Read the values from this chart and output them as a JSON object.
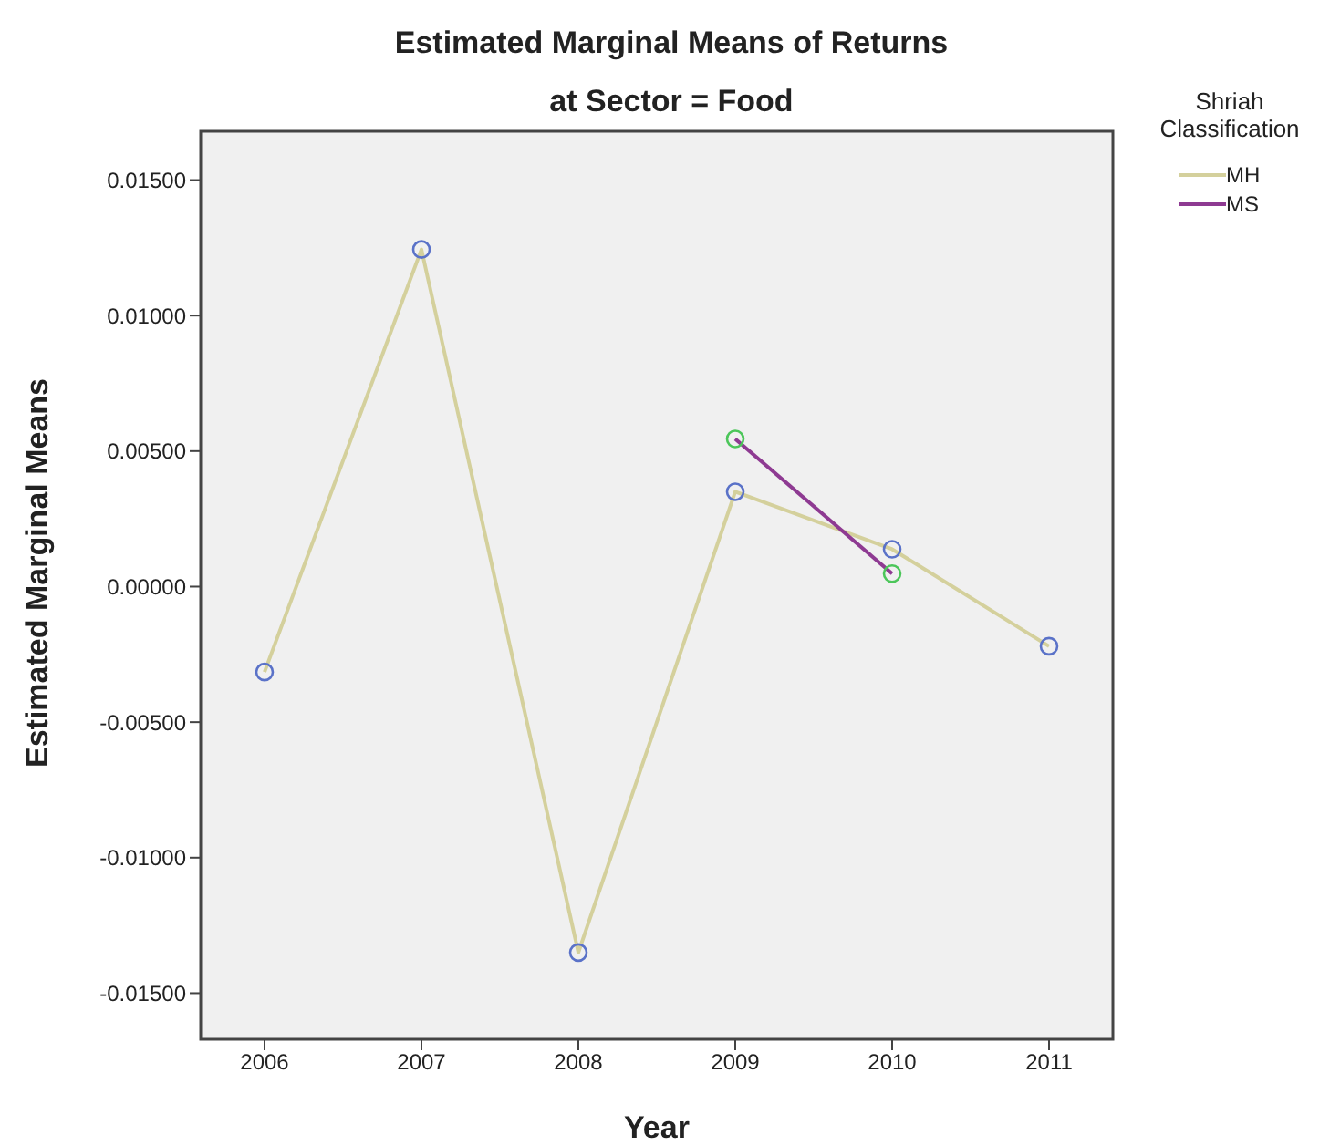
{
  "chart_data": {
    "type": "line",
    "title": "Estimated Marginal Means of Returns",
    "subtitle": "at Sector = Food",
    "xlabel": "Year",
    "ylabel": "Estimated Marginal Means",
    "legend_title": "Shriah Classification",
    "categories": [
      "2006",
      "2007",
      "2008",
      "2009",
      "2010",
      "2011"
    ],
    "series": [
      {
        "name": "MH",
        "color": "#d4d09c",
        "colors": [
          "#5a72c8",
          "#5a72c8",
          "#5a72c8",
          "#5a72c8",
          "#5a72c8",
          "#5a72c8"
        ],
        "values": [
          -0.00315,
          0.01244,
          -0.0135,
          0.0035,
          0.00138,
          -0.0022
        ]
      },
      {
        "name": "MS",
        "color": "#8e3a92",
        "colors": [
          null,
          null,
          null,
          "#4cc65a",
          "#4cc65a",
          null
        ],
        "values": [
          null,
          null,
          null,
          0.00545,
          0.00048,
          null
        ]
      }
    ],
    "ylim": [
      -0.0167,
      0.0168
    ],
    "yticks": [
      {
        "value": 0.015,
        "label": "0.01500"
      },
      {
        "value": 0.01,
        "label": "0.01000"
      },
      {
        "value": 0.005,
        "label": "0.00500"
      },
      {
        "value": 0,
        "label": "0.00000"
      },
      {
        "value": -0.005,
        "label": "-0.00500"
      },
      {
        "value": -0.01,
        "label": "-0.01000"
      },
      {
        "value": -0.015,
        "label": "-0.01500"
      }
    ],
    "legend": "top right",
    "marker": "circle",
    "line_style": "solid"
  }
}
